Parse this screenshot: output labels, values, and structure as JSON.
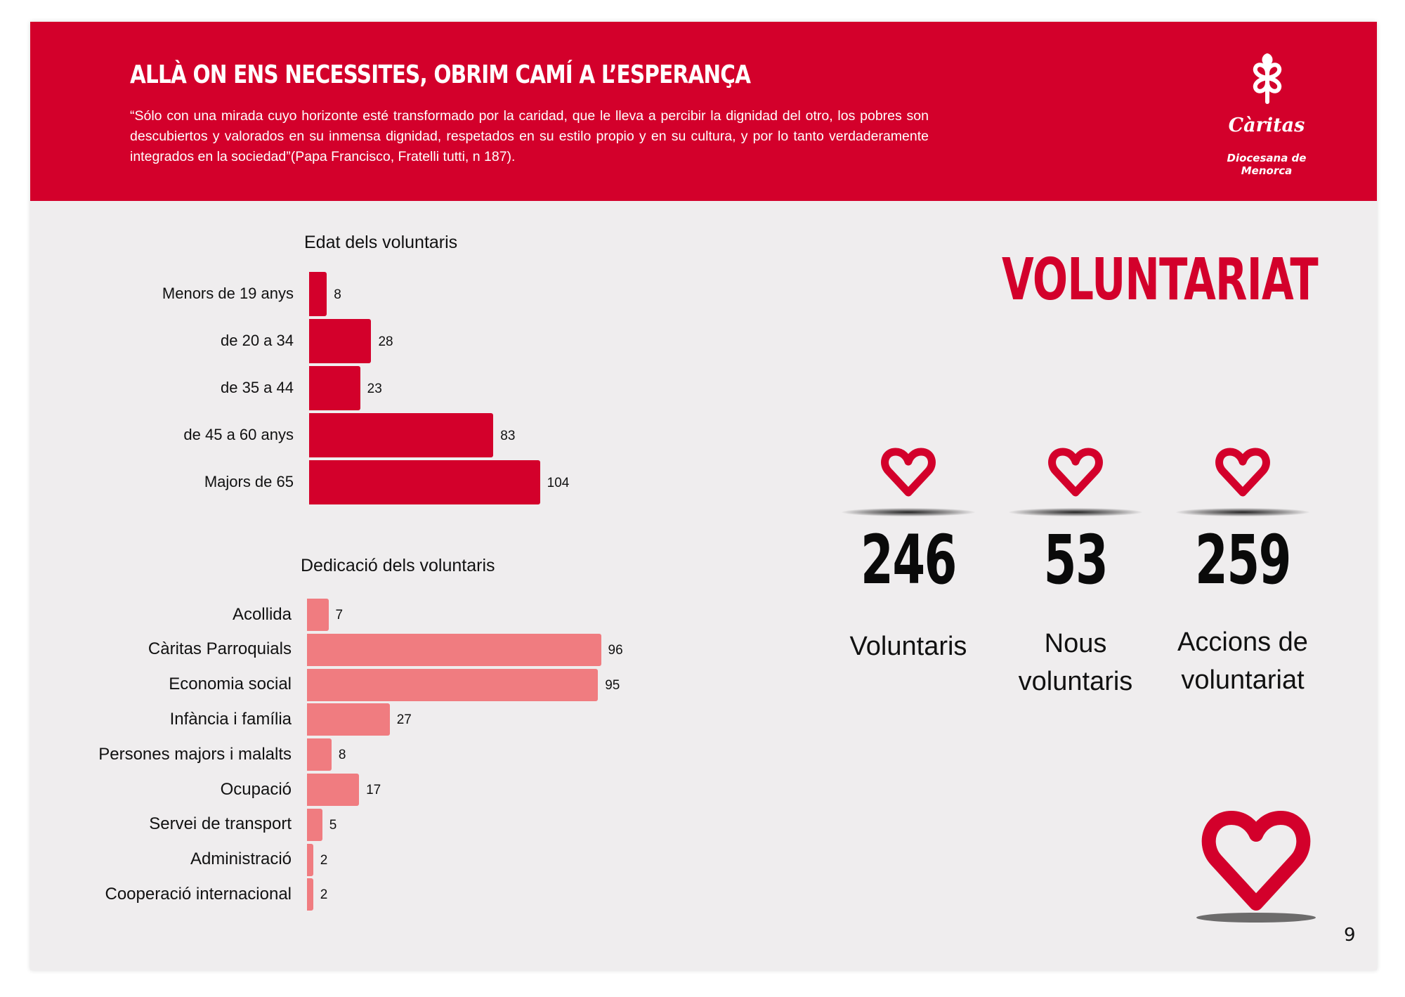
{
  "header": {
    "title": "ALLÀ ON ENS NECESSITES, OBRIM CAMÍ A L’ESPERANÇA",
    "quote": "“Sólo con una mirada cuyo horizonte esté transformado por la caridad, que le lleva a percibir la dignidad del otro, los pobres son descubiertos y valorados en su inmensa dignidad, respetados en su estilo propio y en su cultura, y por lo tanto verdaderamente integrados en la sociedad”(Papa Francisco, Fratelli tutti, n 187).",
    "logo_name": "Càritas",
    "logo_sub_1": "Diocesana de",
    "logo_sub_2": "Menorca"
  },
  "section_title": "VOLUNTARIAT",
  "stats": [
    {
      "value": "246",
      "label_1": "Voluntaris",
      "label_2": ""
    },
    {
      "value": "53",
      "label_1": "Nous",
      "label_2": "voluntaris"
    },
    {
      "value": "259",
      "label_1": "Accions de",
      "label_2": "voluntariat"
    }
  ],
  "page_number": "9",
  "colors": {
    "brand_red": "#d3002b",
    "pink": "#f07c80"
  },
  "chart_data": [
    {
      "type": "bar",
      "orientation": "horizontal",
      "title": "Edat dels voluntaris",
      "categories": [
        "Menors de 19 anys",
        "de 20 a 34",
        "de 35 a 44",
        "de 45 a 60 anys",
        "Majors de 65"
      ],
      "values": [
        8,
        28,
        23,
        83,
        104
      ],
      "color": "#d3002b"
    },
    {
      "type": "bar",
      "orientation": "horizontal",
      "title": "Dedicació dels voluntaris",
      "categories": [
        "Acollida",
        "Càritas Parroquials",
        "Economia social",
        "Infància i família",
        "Persones majors i malalts",
        "Ocupació",
        "Servei de transport",
        "Administració",
        "Cooperació internacional"
      ],
      "values": [
        7,
        96,
        95,
        27,
        8,
        17,
        5,
        2,
        2
      ],
      "color": "#f07c80"
    }
  ]
}
